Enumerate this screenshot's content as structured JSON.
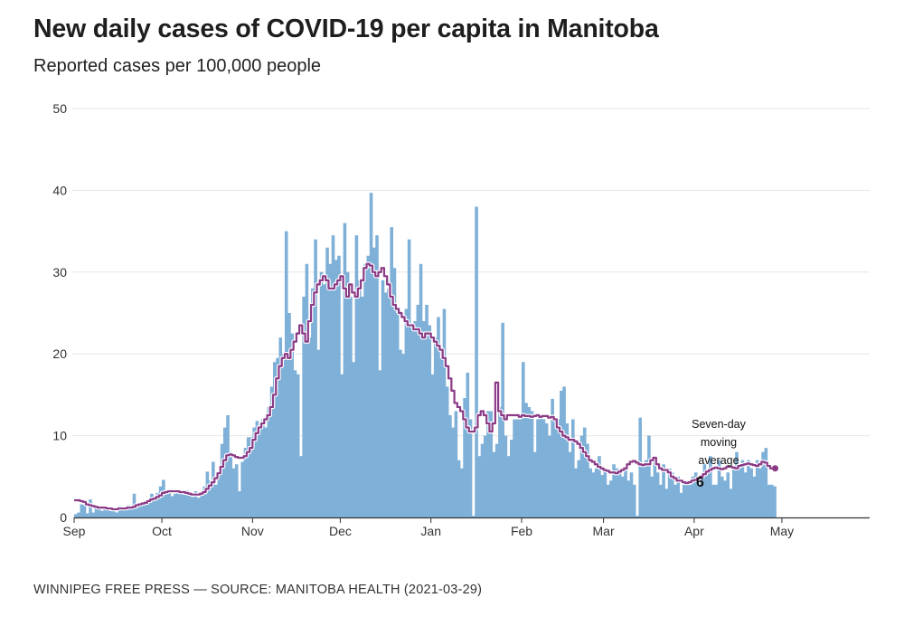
{
  "title": "New daily cases of COVID-19 per capita in Manitoba",
  "subtitle": "Reported cases per 100,000 people",
  "footer": "WINNIPEG FREE PRESS — SOURCE: MANITOBA HEALTH (2021-03-29)",
  "colors": {
    "bar": "#7eb0d8",
    "line": "#8b3a86",
    "grid": "#e6e6e6",
    "axis": "#333333"
  },
  "annotation": {
    "lines": [
      "Seven-day",
      "moving",
      "average"
    ],
    "value": "6"
  },
  "chart_data": {
    "type": "bar",
    "title": "New daily cases of COVID-19 per capita in Manitoba",
    "subtitle": "Reported cases per 100,000 people",
    "xlabel": "",
    "ylabel": "",
    "x_start": "2020-09-01",
    "xlim": [
      "2020-09-01",
      "2021-05-31"
    ],
    "ylim": [
      0,
      50
    ],
    "yticks": [
      0,
      10,
      20,
      30,
      40,
      50
    ],
    "xticks": [
      {
        "date": "2020-09-01",
        "label": "Sep"
      },
      {
        "date": "2020-10-01",
        "label": "Oct"
      },
      {
        "date": "2020-11-01",
        "label": "Nov"
      },
      {
        "date": "2020-12-01",
        "label": "Dec"
      },
      {
        "date": "2021-01-01",
        "label": "Jan"
      },
      {
        "date": "2021-02-01",
        "label": "Feb"
      },
      {
        "date": "2021-03-01",
        "label": "Mar"
      },
      {
        "date": "2021-04-01",
        "label": "Apr"
      },
      {
        "date": "2021-05-01",
        "label": "May"
      }
    ],
    "grid": true,
    "series": [
      {
        "kind": "bar",
        "values": [
          0.4,
          0.6,
          1.6,
          1.5,
          0.5,
          2.2,
          0.6,
          1.3,
          1.0,
          0.8,
          1.3,
          0.9,
          0.8,
          1.2,
          0.6,
          1.4,
          1.1,
          1.0,
          1.5,
          1.2,
          2.9,
          1.2,
          1.7,
          1.5,
          1.8,
          2.1,
          2.9,
          2.5,
          3.0,
          3.8,
          4.6,
          3.3,
          3.0,
          2.6,
          2.9,
          3.4,
          3.0,
          2.8,
          3.3,
          3.0,
          2.5,
          3.2,
          2.4,
          3.0,
          3.8,
          5.6,
          4.5,
          6.8,
          4.0,
          5.5,
          9.0,
          11.0,
          12.5,
          8.0,
          6.0,
          6.5,
          3.2,
          6.8,
          8.5,
          9.8,
          9.8,
          11.0,
          11.8,
          11.2,
          12.0,
          11.0,
          13.5,
          16.0,
          19.0,
          19.5,
          22.0,
          20.0,
          35.0,
          25.0,
          22.5,
          18.0,
          17.5,
          7.5,
          27.0,
          31.0,
          22.0,
          28.0,
          34.0,
          20.5,
          30.0,
          28.5,
          33.0,
          31.0,
          34.5,
          31.5,
          32.0,
          17.5,
          36.0,
          30.0,
          27.0,
          19.0,
          34.5,
          29.0,
          27.0,
          31.0,
          32.0,
          39.7,
          33.0,
          34.5,
          18.0,
          29.0,
          27.5,
          28.0,
          35.5,
          30.5,
          25.0,
          20.5,
          20.0,
          25.5,
          34.0,
          23.5,
          24.0,
          26.0,
          31.0,
          24.0,
          26.0,
          23.5,
          17.5,
          22.0,
          24.5,
          19.5,
          25.5,
          16.0,
          12.5,
          11.0,
          13.0,
          7.0,
          6.0,
          14.6,
          17.7,
          12.0,
          0.2,
          38.0,
          7.5,
          9.0,
          10.0,
          13.0,
          13.0,
          8.0,
          9.0,
          13.5,
          23.8,
          10.0,
          7.5,
          9.5,
          12.0,
          12.0,
          12.0,
          19.0,
          14.0,
          13.5,
          13.0,
          8.0,
          12.0,
          12.5,
          12.0,
          11.5,
          10.0,
          14.5,
          12.0,
          12.0,
          15.5,
          16.0,
          11.5,
          8.0,
          12.0,
          6.0,
          7.0,
          10.0,
          11.0,
          9.0,
          6.0,
          5.5,
          6.0,
          7.5,
          5.2,
          6.0,
          4.0,
          4.5,
          6.5,
          6.0,
          5.5,
          5.0,
          6.0,
          4.5,
          5.5,
          4.0,
          0.2,
          12.2,
          6.5,
          7.0,
          10.0,
          5.0,
          7.0,
          5.5,
          4.0,
          6.5,
          3.5,
          6.0,
          5.5,
          4.0,
          5.0,
          3.0,
          4.0,
          4.5,
          4.0,
          5.0,
          5.5,
          4.0,
          5.0,
          6.5,
          5.5,
          7.5,
          4.0,
          4.0,
          7.0,
          5.0,
          4.5,
          5.5,
          3.5,
          6.0,
          8.0,
          6.0,
          7.0,
          5.5,
          7.0,
          6.0,
          5.0,
          7.0,
          6.0,
          8.0,
          8.5,
          4.0,
          4.0,
          3.8
        ]
      },
      {
        "kind": "line",
        "name": "Seven-day moving average",
        "values": [
          2.1,
          2.1,
          2.0,
          1.9,
          1.6,
          1.5,
          1.4,
          1.3,
          1.2,
          1.2,
          1.2,
          1.1,
          1.1,
          1.0,
          1.0,
          1.1,
          1.1,
          1.1,
          1.2,
          1.2,
          1.3,
          1.5,
          1.6,
          1.7,
          1.8,
          2.0,
          2.2,
          2.3,
          2.5,
          2.7,
          3.0,
          3.1,
          3.2,
          3.2,
          3.2,
          3.2,
          3.1,
          3.1,
          3.0,
          2.9,
          2.8,
          2.8,
          2.8,
          2.9,
          3.1,
          3.5,
          3.9,
          4.3,
          4.8,
          5.4,
          6.2,
          7.0,
          7.6,
          7.7,
          7.6,
          7.4,
          7.3,
          7.3,
          7.5,
          8.0,
          8.5,
          9.5,
          10.3,
          11.0,
          11.5,
          12.0,
          12.5,
          13.5,
          15.0,
          17.0,
          18.5,
          19.5,
          20.0,
          19.5,
          20.5,
          21.5,
          22.5,
          23.5,
          22.5,
          21.5,
          24.0,
          26.0,
          27.5,
          28.5,
          29.0,
          29.5,
          29.0,
          28.0,
          28.0,
          28.5,
          29.0,
          29.5,
          28.0,
          27.0,
          28.5,
          27.5,
          27.0,
          28.0,
          29.0,
          30.5,
          31.0,
          30.8,
          30.0,
          29.5,
          30.0,
          30.5,
          29.5,
          28.5,
          27.0,
          26.0,
          25.5,
          25.0,
          24.5,
          24.0,
          23.5,
          23.5,
          23.0,
          23.0,
          22.5,
          22.0,
          22.5,
          22.5,
          22.0,
          21.5,
          21.0,
          20.5,
          19.5,
          18.5,
          17.0,
          15.5,
          14.0,
          13.5,
          13.0,
          12.0,
          11.0,
          10.5,
          10.5,
          11.0,
          12.5,
          13.0,
          12.5,
          11.5,
          10.5,
          11.5,
          16.5,
          13.0,
          12.5,
          12.0,
          12.5,
          12.5,
          12.5,
          12.5,
          12.3,
          12.5,
          12.4,
          12.4,
          12.3,
          12.4,
          12.5,
          12.3,
          12.4,
          12.4,
          12.2,
          12.3,
          12.0,
          11.0,
          10.5,
          10.0,
          9.8,
          9.5,
          9.5,
          9.3,
          9.0,
          8.5,
          8.0,
          7.5,
          7.0,
          6.8,
          6.5,
          6.2,
          6.0,
          5.8,
          5.7,
          5.5,
          5.5,
          5.4,
          5.6,
          5.8,
          6.0,
          6.5,
          6.8,
          6.9,
          6.7,
          6.5,
          6.4,
          6.5,
          6.5,
          7.0,
          7.3,
          6.5,
          6.0,
          5.8,
          5.8,
          5.5,
          5.0,
          4.8,
          4.5,
          4.5,
          4.3,
          4.2,
          4.3,
          4.5,
          4.6,
          4.8,
          5.0,
          5.3,
          5.6,
          5.8,
          6.0,
          6.1,
          6.0,
          5.9,
          6.0,
          6.2,
          6.2,
          6.1,
          6.0,
          6.3,
          6.4,
          6.5,
          6.6,
          6.5,
          6.4,
          6.3,
          6.5,
          6.8,
          6.7,
          6.3,
          6.0,
          6.0
        ]
      }
    ],
    "annotations": [
      {
        "text": "Seven-day moving average",
        "value": "6"
      }
    ]
  }
}
